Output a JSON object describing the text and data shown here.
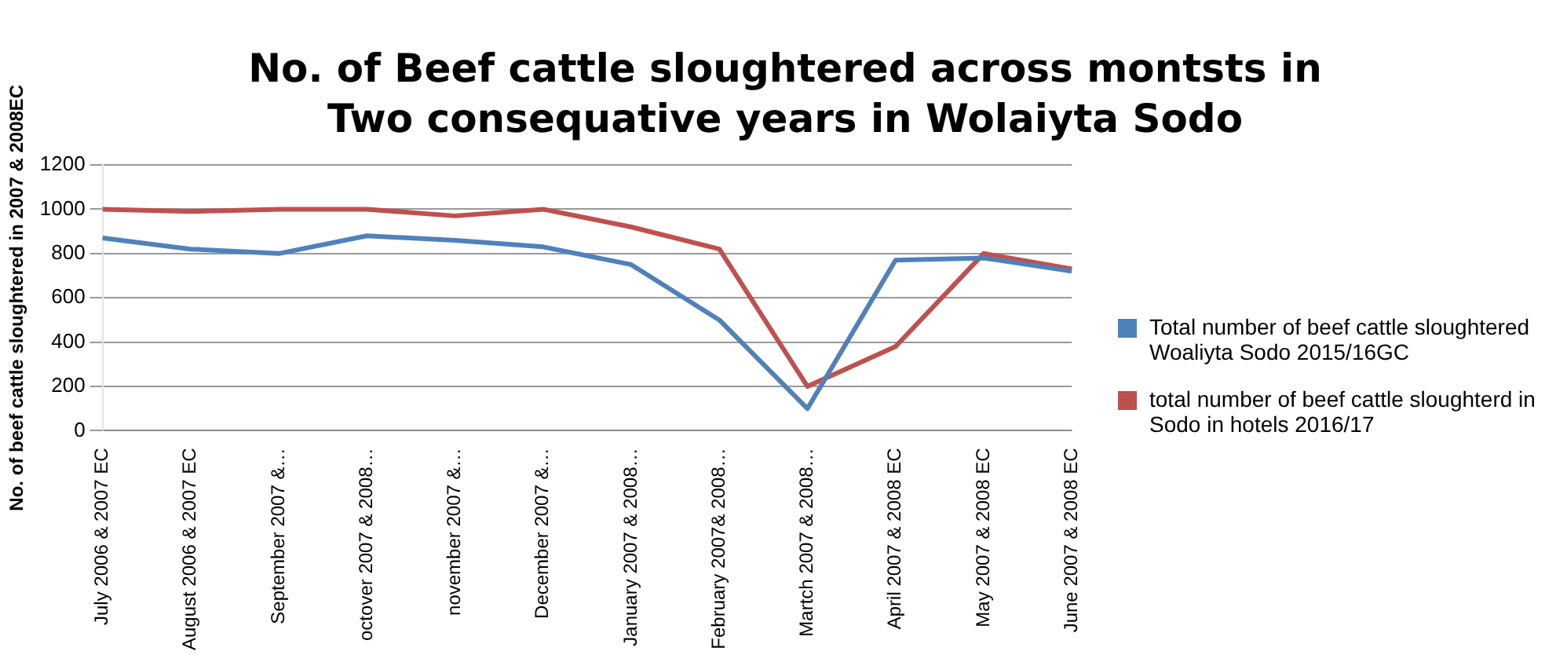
{
  "chart_data": {
    "type": "line",
    "title": "No. of Beef cattle sloughtered across montsts in Two consequative years in Wolaiyta Sodo",
    "ylabel": "No. of beef cattle sloughtered in 2007 & 2008EC",
    "categories": [
      "July 2006 & 2007 EC",
      "August 2006 & 2007 EC",
      "September 2007 &…",
      "octover 2007 & 2008…",
      "november 2007 &…",
      "December 2007 &…",
      "January 2007 & 2008…",
      "February 2007& 2008…",
      "Martch 2007 & 2008…",
      "April 2007 & 2008 EC",
      "May 2007 & 2008 EC",
      "June 2007 & 2008 EC"
    ],
    "series": [
      {
        "name": "Total number of beef cattle sloughtered Woaliyta Sodo 2015/16GC",
        "color": "#4f81bd",
        "values": [
          870,
          820,
          800,
          880,
          860,
          830,
          750,
          500,
          100,
          770,
          780,
          720
        ]
      },
      {
        "name": "total number of beef cattle sloughterd in Sodo in hotels 2016/17",
        "color": "#c0504d",
        "values": [
          1000,
          990,
          1000,
          1000,
          970,
          1000,
          920,
          820,
          200,
          380,
          800,
          730
        ]
      }
    ],
    "ylim": [
      0,
      1200
    ],
    "yticks": [
      0,
      200,
      400,
      600,
      800,
      1000,
      1200
    ],
    "grid": "y",
    "legend": "right",
    "marker": "none"
  }
}
